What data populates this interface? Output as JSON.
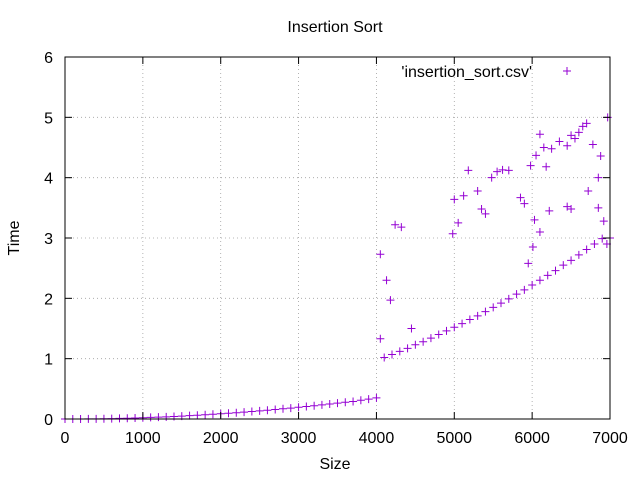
{
  "chart_data": {
    "type": "scatter",
    "title": "Insertion Sort",
    "xlabel": "Size",
    "ylabel": "Time",
    "xlim": [
      0,
      7000
    ],
    "ylim": [
      0,
      6
    ],
    "xticks": [
      "0",
      "1000",
      "2000",
      "3000",
      "4000",
      "5000",
      "6000",
      "7000"
    ],
    "yticks": [
      "0",
      "1",
      "2",
      "3",
      "4",
      "5",
      "6"
    ],
    "grid": true,
    "legend": "top-right",
    "series": [
      {
        "name": "'insertion_sort.csv'",
        "color": "#9400d3",
        "marker": "plus",
        "points": [
          [
            0,
            0.0
          ],
          [
            100,
            0.0
          ],
          [
            200,
            0.001
          ],
          [
            300,
            0.002
          ],
          [
            400,
            0.003
          ],
          [
            500,
            0.005
          ],
          [
            600,
            0.007
          ],
          [
            700,
            0.01
          ],
          [
            800,
            0.013
          ],
          [
            900,
            0.017
          ],
          [
            1000,
            0.021
          ],
          [
            1100,
            0.026
          ],
          [
            1200,
            0.031
          ],
          [
            1300,
            0.036
          ],
          [
            1400,
            0.042
          ],
          [
            1500,
            0.048
          ],
          [
            1600,
            0.055
          ],
          [
            1700,
            0.062
          ],
          [
            1800,
            0.07
          ],
          [
            1900,
            0.078
          ],
          [
            2000,
            0.086
          ],
          [
            2100,
            0.095
          ],
          [
            2200,
            0.104
          ],
          [
            2300,
            0.114
          ],
          [
            2400,
            0.124
          ],
          [
            2500,
            0.135
          ],
          [
            2600,
            0.146
          ],
          [
            2700,
            0.157
          ],
          [
            2800,
            0.169
          ],
          [
            2900,
            0.181
          ],
          [
            3000,
            0.194
          ],
          [
            3100,
            0.207
          ],
          [
            3200,
            0.22
          ],
          [
            3300,
            0.234
          ],
          [
            3400,
            0.248
          ],
          [
            3500,
            0.263
          ],
          [
            3600,
            0.278
          ],
          [
            3700,
            0.29
          ],
          [
            3800,
            0.31
          ],
          [
            3900,
            0.33
          ],
          [
            4000,
            0.35
          ],
          [
            4100,
            1.02
          ],
          [
            4200,
            1.07
          ],
          [
            4300,
            1.12
          ],
          [
            4400,
            1.17
          ],
          [
            4500,
            1.23
          ],
          [
            4600,
            1.28
          ],
          [
            4700,
            1.34
          ],
          [
            4800,
            1.4
          ],
          [
            4900,
            1.46
          ],
          [
            5000,
            1.52
          ],
          [
            5100,
            1.58
          ],
          [
            5200,
            1.65
          ],
          [
            5300,
            1.71
          ],
          [
            5400,
            1.78
          ],
          [
            5500,
            1.85
          ],
          [
            5600,
            1.92
          ],
          [
            5700,
            1.99
          ],
          [
            5800,
            2.07
          ],
          [
            5900,
            2.14
          ],
          [
            6000,
            2.22
          ],
          [
            6100,
            2.3
          ],
          [
            6200,
            2.38
          ],
          [
            6300,
            2.46
          ],
          [
            6400,
            2.55
          ],
          [
            6500,
            2.63
          ],
          [
            6600,
            2.72
          ],
          [
            6700,
            2.81
          ],
          [
            6800,
            2.9
          ],
          [
            6900,
            2.99
          ],
          [
            7000,
            3.0
          ],
          [
            4050,
            2.73
          ],
          [
            4130,
            2.3
          ],
          [
            4240,
            3.22
          ],
          [
            4320,
            3.18
          ],
          [
            4450,
            1.5
          ],
          [
            4050,
            1.33
          ],
          [
            4180,
            1.97
          ],
          [
            4980,
            3.07
          ],
          [
            5000,
            3.64
          ],
          [
            5050,
            3.25
          ],
          [
            5120,
            3.7
          ],
          [
            5180,
            4.12
          ],
          [
            5300,
            3.78
          ],
          [
            5350,
            3.48
          ],
          [
            5400,
            3.4
          ],
          [
            5480,
            4.0
          ],
          [
            5550,
            4.1
          ],
          [
            5620,
            4.13
          ],
          [
            5700,
            4.12
          ],
          [
            5850,
            3.67
          ],
          [
            5900,
            3.57
          ],
          [
            5980,
            4.2
          ],
          [
            6050,
            4.37
          ],
          [
            6100,
            4.72
          ],
          [
            6150,
            4.5
          ],
          [
            6180,
            4.18
          ],
          [
            6250,
            4.48
          ],
          [
            6350,
            4.6
          ],
          [
            6450,
            4.53
          ],
          [
            6500,
            4.7
          ],
          [
            6550,
            4.65
          ],
          [
            6600,
            4.75
          ],
          [
            6650,
            4.85
          ],
          [
            6700,
            4.9
          ],
          [
            6780,
            4.55
          ],
          [
            6850,
            4.0
          ],
          [
            6880,
            4.36
          ],
          [
            6920,
            3.28
          ],
          [
            6970,
            5.0
          ],
          [
            6030,
            3.3
          ],
          [
            6100,
            3.1
          ],
          [
            6220,
            3.45
          ],
          [
            6450,
            3.52
          ],
          [
            6500,
            3.48
          ],
          [
            6720,
            3.78
          ],
          [
            6850,
            3.5
          ],
          [
            6960,
            2.9
          ],
          [
            5950,
            2.58
          ],
          [
            6010,
            2.85
          ]
        ]
      }
    ]
  }
}
